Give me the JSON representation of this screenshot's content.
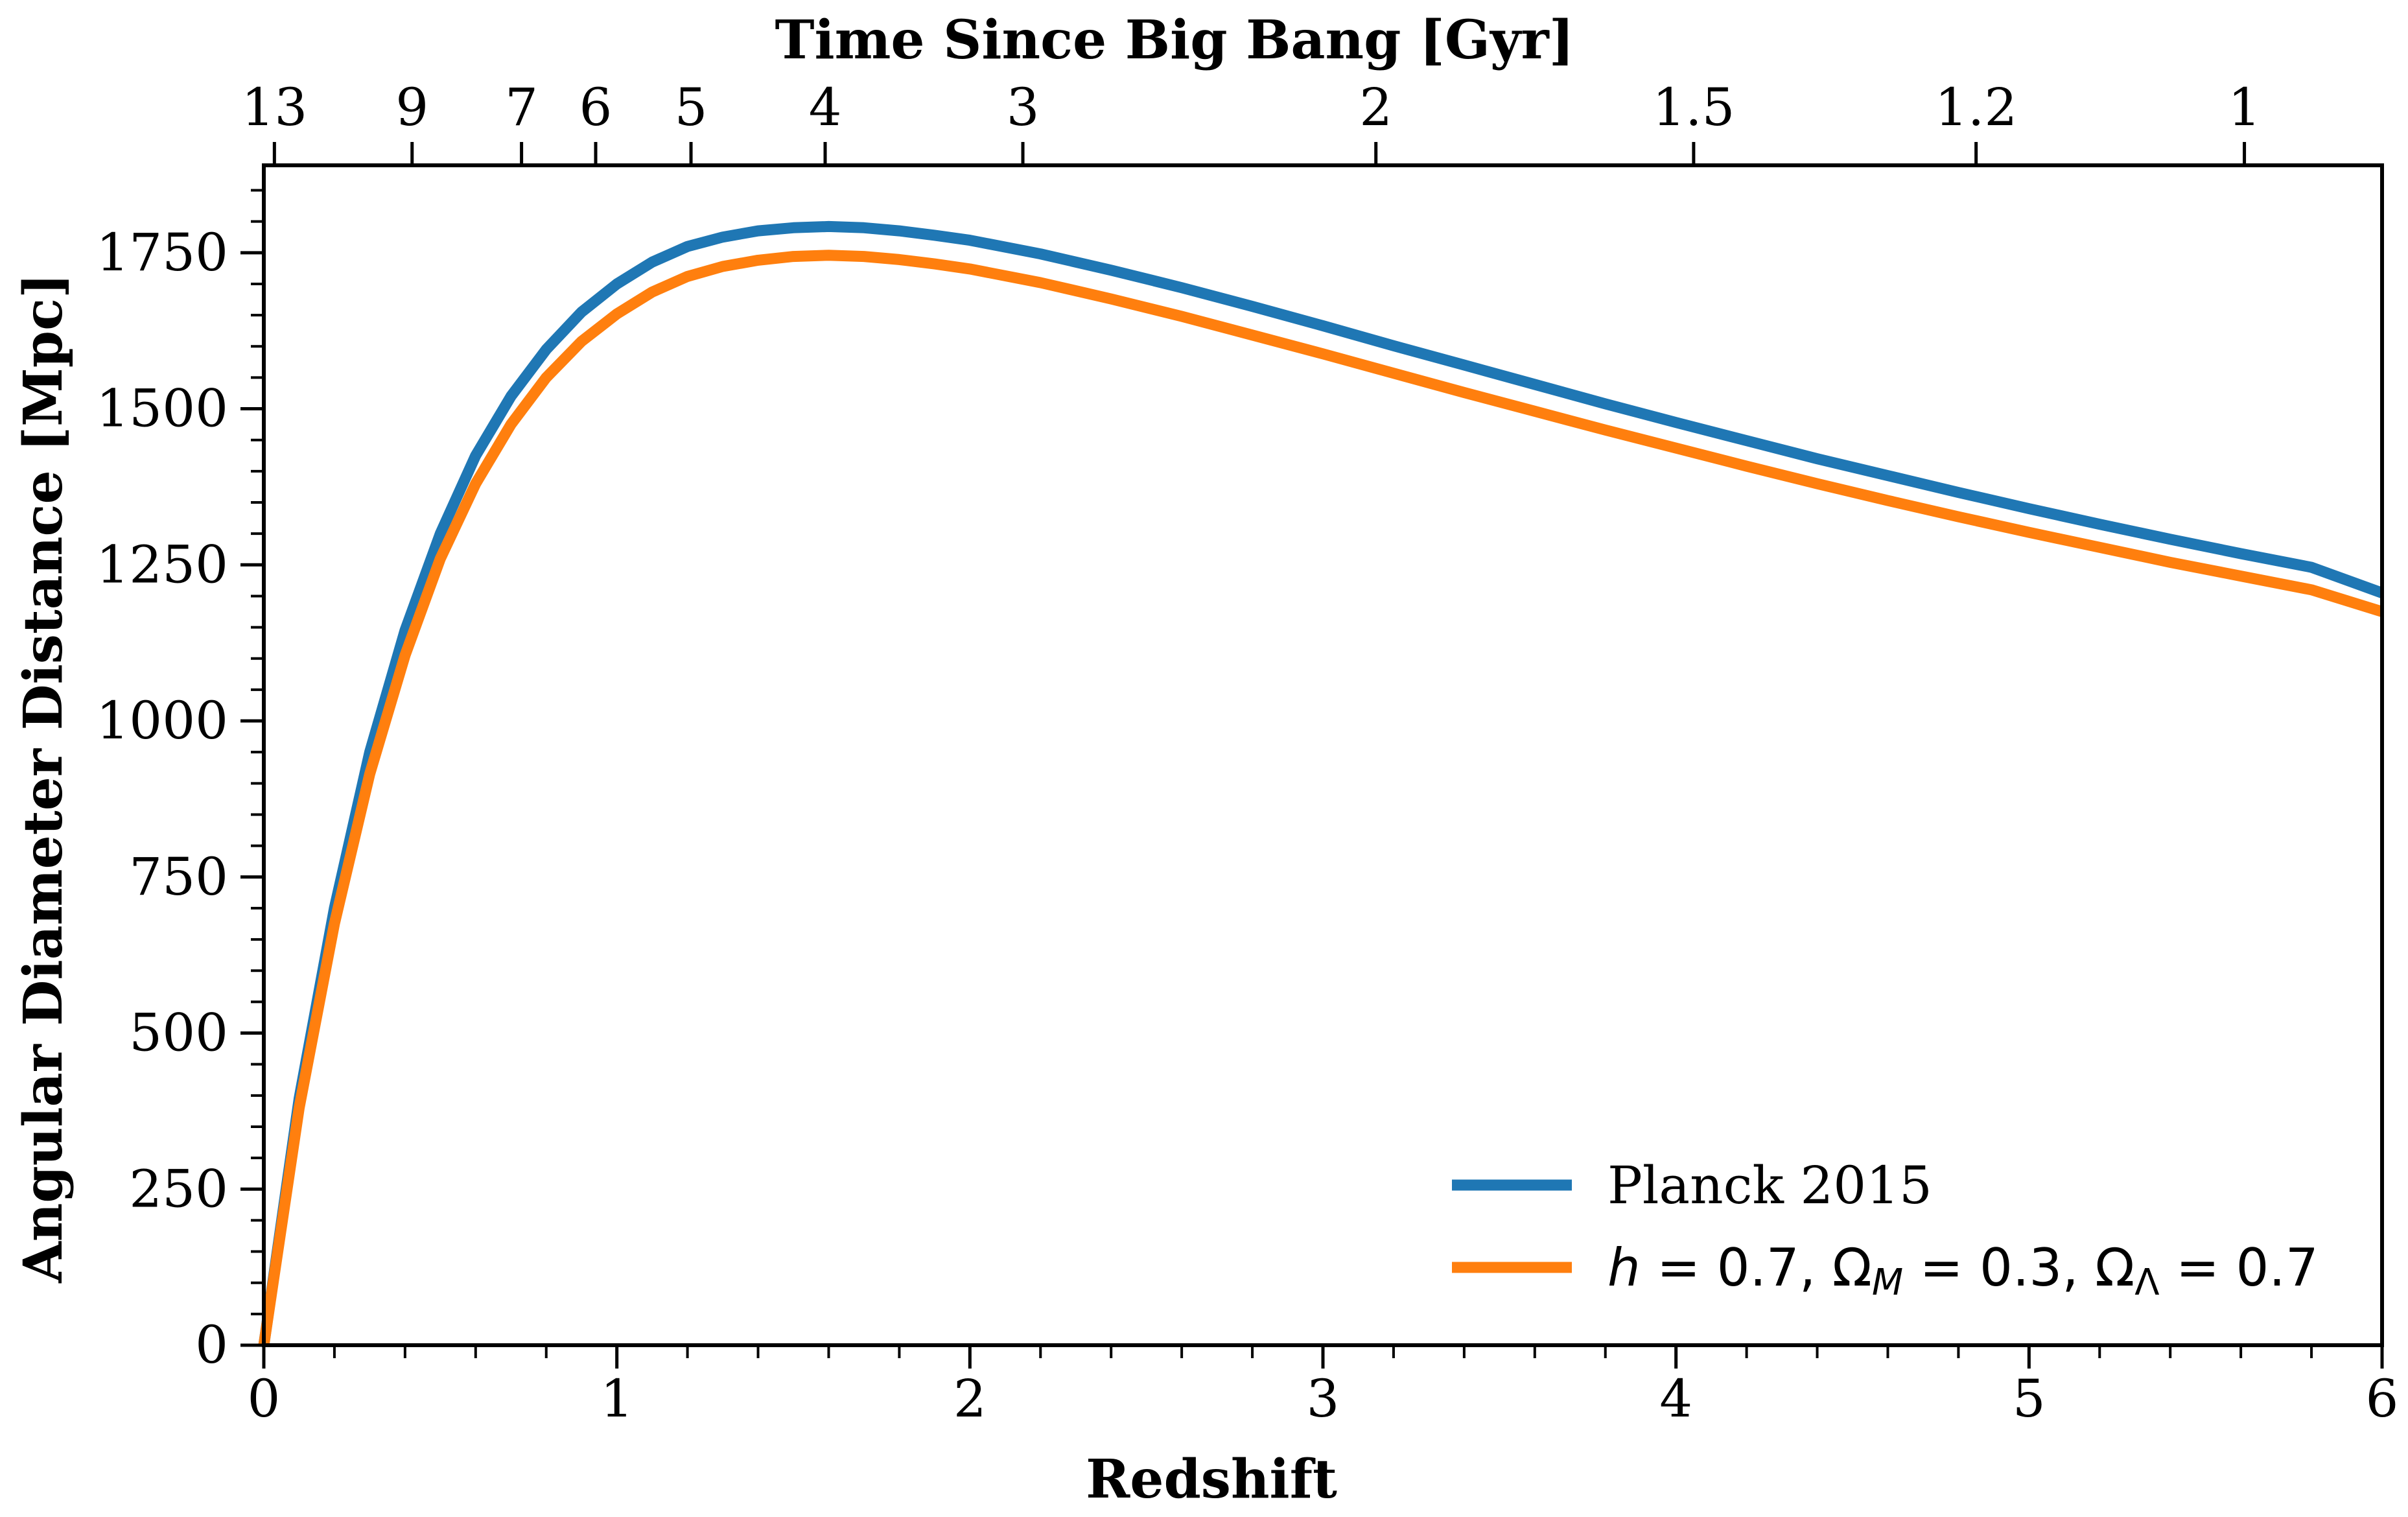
{
  "chart_data": {
    "type": "line",
    "xlabel": "Redshift",
    "ylabel": "Angular Diameter Distance [Mpc]",
    "top_xlabel": "Time Since Big Bang [Gyr]",
    "xlim": [
      0,
      6
    ],
    "ylim": [
      0,
      1890
    ],
    "x_ticks": [
      0,
      1,
      2,
      3,
      4,
      5,
      6
    ],
    "x_tick_labels": [
      "0",
      "1",
      "2",
      "3",
      "4",
      "5",
      "6"
    ],
    "y_ticks": [
      0,
      250,
      500,
      750,
      1000,
      1250,
      1500,
      1750
    ],
    "y_tick_labels": [
      "0",
      "250",
      "500",
      "750",
      "1000",
      "1250",
      "1500",
      "1750"
    ],
    "top_ticks": [
      {
        "label": "13",
        "z": 0.03
      },
      {
        "label": "9",
        "z": 0.42
      },
      {
        "label": "7",
        "z": 0.73
      },
      {
        "label": "6",
        "z": 0.94
      },
      {
        "label": "5",
        "z": 1.21
      },
      {
        "label": "4",
        "z": 1.59
      },
      {
        "label": "3",
        "z": 2.15
      },
      {
        "label": "2",
        "z": 3.15
      },
      {
        "label": "1.5",
        "z": 4.05
      },
      {
        "label": "1.2",
        "z": 4.85
      },
      {
        "label": "1",
        "z": 5.61
      }
    ],
    "grid": false,
    "legend_position": "bottom-right",
    "series": [
      {
        "name": "Planck 2015",
        "color": "#1f77b4",
        "x": [
          0,
          0.1,
          0.2,
          0.3,
          0.4,
          0.5,
          0.6,
          0.7,
          0.8,
          0.9,
          1.0,
          1.1,
          1.2,
          1.3,
          1.4,
          1.5,
          1.6,
          1.7,
          1.8,
          1.9,
          2.0,
          2.2,
          2.4,
          2.6,
          2.8,
          3.0,
          3.2,
          3.4,
          3.6,
          3.8,
          4.0,
          4.2,
          4.4,
          4.6,
          4.8,
          5.0,
          5.2,
          5.4,
          5.6,
          5.8,
          6.0
        ],
        "y": [
          0,
          395,
          700,
          950,
          1145,
          1300,
          1425,
          1520,
          1595,
          1655,
          1700,
          1735,
          1760,
          1775,
          1785,
          1790,
          1792,
          1790,
          1785,
          1778,
          1770,
          1748,
          1722,
          1694,
          1664,
          1633,
          1601,
          1570,
          1539,
          1508,
          1478,
          1449,
          1420,
          1393,
          1366,
          1340,
          1315,
          1291,
          1268,
          1246,
          1205
        ]
      },
      {
        "name": "h = 0.7,  Ω_M = 0.3,  Ω_Λ = 0.7",
        "color": "#ff7f0e",
        "x": [
          0,
          0.1,
          0.2,
          0.3,
          0.4,
          0.5,
          0.6,
          0.7,
          0.8,
          0.9,
          1.0,
          1.1,
          1.2,
          1.3,
          1.4,
          1.5,
          1.6,
          1.7,
          1.8,
          1.9,
          2.0,
          2.2,
          2.4,
          2.6,
          2.8,
          3.0,
          3.2,
          3.4,
          3.6,
          3.8,
          4.0,
          4.2,
          4.4,
          4.6,
          4.8,
          5.0,
          5.2,
          5.4,
          5.6,
          5.8,
          6.0
        ],
        "y": [
          0,
          380,
          675,
          915,
          1105,
          1260,
          1380,
          1475,
          1550,
          1608,
          1652,
          1687,
          1712,
          1728,
          1738,
          1744,
          1746,
          1744,
          1739,
          1732,
          1724,
          1702,
          1676,
          1648,
          1618,
          1588,
          1557,
          1526,
          1496,
          1466,
          1437,
          1408,
          1380,
          1353,
          1327,
          1302,
          1278,
          1254,
          1232,
          1210,
          1175
        ]
      }
    ],
    "legend": {
      "entry1": "Planck 2015",
      "entry2_parts": {
        "h": "h",
        "h_val": " = 0.7,  ",
        "om": "Ω",
        "om_sub": "M",
        "om_val": " = 0.3,  ",
        "ol": "Ω",
        "ol_sub": "Λ",
        "ol_val": " = 0.7"
      }
    }
  }
}
